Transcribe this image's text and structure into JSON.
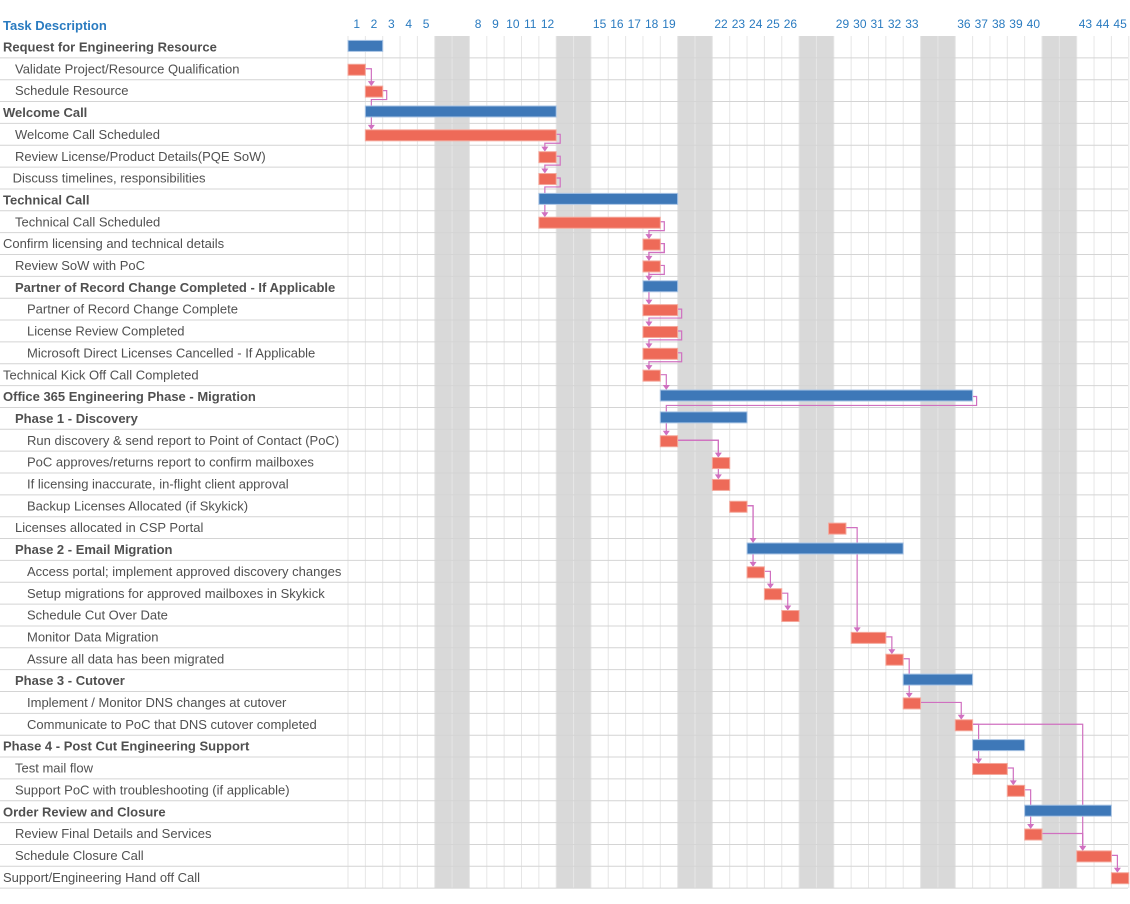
{
  "chart_data": {
    "type": "gantt",
    "title": "",
    "header": {
      "task_column": "Task Description"
    },
    "x_unit": "day",
    "day_range": [
      1,
      45
    ],
    "day_labels_shown": [
      1,
      2,
      3,
      4,
      5,
      8,
      9,
      10,
      11,
      12,
      15,
      16,
      17,
      18,
      19,
      22,
      23,
      24,
      25,
      26,
      29,
      30,
      31,
      32,
      33,
      36,
      37,
      38,
      39,
      40,
      43,
      44,
      45
    ],
    "weekends": [
      [
        6,
        7
      ],
      [
        13,
        14
      ],
      [
        20,
        21
      ],
      [
        27,
        28
      ],
      [
        34,
        35
      ],
      [
        41,
        42
      ]
    ],
    "colors": {
      "summary": "#3e78b8",
      "task": "#ee6a58",
      "dependency": "#d070c0",
      "weekend": "#d9d9d9",
      "header": "#2a7bc0"
    },
    "tasks": [
      {
        "name": "Request for Engineering Resource",
        "level": 0,
        "summary": true,
        "start": 1,
        "duration": 2
      },
      {
        "name": "Validate Project/Resource Qualification",
        "level": 1,
        "summary": false,
        "start": 1,
        "duration": 1
      },
      {
        "name": "Schedule Resource",
        "level": 1,
        "summary": false,
        "start": 2,
        "duration": 1
      },
      {
        "name": "Welcome Call",
        "level": 0,
        "summary": true,
        "start": 2,
        "duration": 11
      },
      {
        "name": "Welcome Call Scheduled",
        "level": 1,
        "summary": false,
        "start": 2,
        "duration": 11
      },
      {
        "name": "Review License/Product Details(PQE SoW)",
        "level": 1,
        "summary": false,
        "start": 12,
        "duration": 1
      },
      {
        "name": "Discuss timelines, responsibilities",
        "level": 0.8,
        "summary": false,
        "start": 12,
        "duration": 1
      },
      {
        "name": "Technical Call",
        "level": 0,
        "summary": true,
        "start": 12,
        "duration": 8
      },
      {
        "name": "Technical Call Scheduled",
        "level": 1,
        "summary": false,
        "start": 12,
        "duration": 7
      },
      {
        "name": "Confirm licensing and technical details",
        "level": 0,
        "summary": false,
        "start": 18,
        "duration": 1
      },
      {
        "name": "Review SoW with PoC",
        "level": 1,
        "summary": false,
        "start": 18,
        "duration": 1
      },
      {
        "name": "Partner of Record Change Completed - If Applicable",
        "level": 1,
        "summary": true,
        "start": 18,
        "duration": 2
      },
      {
        "name": "Partner of Record Change Complete",
        "level": 2,
        "summary": false,
        "start": 18,
        "duration": 2
      },
      {
        "name": "License Review Completed",
        "level": 2,
        "summary": false,
        "start": 18,
        "duration": 2
      },
      {
        "name": "Microsoft Direct Licenses Cancelled - If Applicable",
        "level": 2,
        "summary": false,
        "start": 18,
        "duration": 2
      },
      {
        "name": "Technical Kick Off Call Completed",
        "level": 0,
        "summary": false,
        "start": 18,
        "duration": 1
      },
      {
        "name": "Office 365 Engineering Phase - Migration",
        "level": 0,
        "summary": true,
        "start": 19,
        "duration": 18
      },
      {
        "name": "Phase 1 - Discovery",
        "level": 1,
        "summary": true,
        "start": 19,
        "duration": 5
      },
      {
        "name": "Run discovery & send report to Point of Contact (PoC)",
        "level": 2,
        "summary": false,
        "start": 19,
        "duration": 1
      },
      {
        "name": "PoC approves/returns report to confirm mailboxes",
        "level": 2,
        "summary": false,
        "start": 22,
        "duration": 1
      },
      {
        "name": "If licensing inaccurate, in-flight client approval",
        "level": 2,
        "summary": false,
        "start": 22,
        "duration": 1
      },
      {
        "name": "Backup Licenses Allocated (if Skykick)",
        "level": 2,
        "summary": false,
        "start": 23,
        "duration": 1
      },
      {
        "name": "Licenses allocated in CSP Portal",
        "level": 1,
        "summary": false,
        "start": 28.7,
        "duration": 1
      },
      {
        "name": "Phase 2 - Email Migration",
        "level": 1,
        "summary": true,
        "start": 24,
        "duration": 9
      },
      {
        "name": "Access portal; implement approved discovery changes",
        "level": 2,
        "summary": false,
        "start": 24,
        "duration": 1
      },
      {
        "name": "Setup migrations for approved mailboxes in Skykick",
        "level": 2,
        "summary": false,
        "start": 25,
        "duration": 1
      },
      {
        "name": "Schedule Cut Over Date",
        "level": 2,
        "summary": false,
        "start": 26,
        "duration": 1
      },
      {
        "name": "Monitor Data Migration",
        "level": 2,
        "summary": false,
        "start": 30,
        "duration": 2
      },
      {
        "name": "Assure all data has been migrated",
        "level": 2,
        "summary": false,
        "start": 32,
        "duration": 1
      },
      {
        "name": "Phase 3 - Cutover",
        "level": 1,
        "summary": true,
        "start": 33,
        "duration": 4
      },
      {
        "name": "Implement / Monitor DNS changes at cutover",
        "level": 2,
        "summary": false,
        "start": 33,
        "duration": 1
      },
      {
        "name": "Communicate to PoC that DNS cutover completed",
        "level": 2,
        "summary": false,
        "start": 36,
        "duration": 1
      },
      {
        "name": "Phase 4 - Post Cut Engineering Support",
        "level": 0,
        "summary": true,
        "start": 37,
        "duration": 3
      },
      {
        "name": "Test mail flow",
        "level": 1,
        "summary": false,
        "start": 37,
        "duration": 2
      },
      {
        "name": "Support PoC with troubleshooting (if applicable)",
        "level": 1,
        "summary": false,
        "start": 39,
        "duration": 1
      },
      {
        "name": "Order Review and Closure",
        "level": 0,
        "summary": true,
        "start": 40,
        "duration": 5
      },
      {
        "name": "Review Final Details and Services",
        "level": 1,
        "summary": false,
        "start": 40,
        "duration": 1
      },
      {
        "name": "Schedule Closure Call",
        "level": 1,
        "summary": false,
        "start": 43,
        "duration": 2
      },
      {
        "name": "Support/Engineering Hand off Call",
        "level": 0,
        "summary": false,
        "start": 45,
        "duration": 1
      }
    ],
    "dependencies": [
      [
        1,
        2
      ],
      [
        2,
        4
      ],
      [
        4,
        5
      ],
      [
        5,
        6
      ],
      [
        6,
        8
      ],
      [
        8,
        9
      ],
      [
        9,
        10
      ],
      [
        9,
        11
      ],
      [
        10,
        12
      ],
      [
        12,
        13
      ],
      [
        13,
        14
      ],
      [
        14,
        15
      ],
      [
        15,
        16
      ],
      [
        16,
        18
      ],
      [
        18,
        19
      ],
      [
        18,
        20
      ],
      [
        21,
        23
      ],
      [
        21,
        24
      ],
      [
        24,
        25
      ],
      [
        25,
        26
      ],
      [
        22,
        27
      ],
      [
        27,
        28
      ],
      [
        28,
        30
      ],
      [
        30,
        31
      ],
      [
        31,
        33
      ],
      [
        33,
        34
      ],
      [
        34,
        36
      ],
      [
        36,
        37
      ],
      [
        31,
        37
      ],
      [
        37,
        38
      ]
    ]
  }
}
